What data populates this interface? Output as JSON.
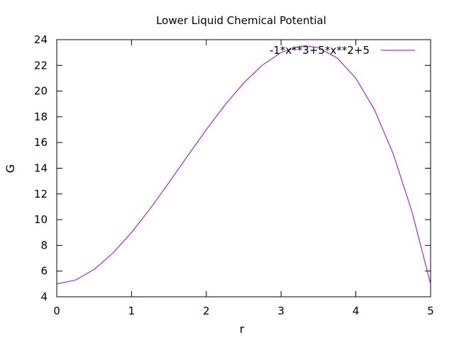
{
  "chart_data": {
    "type": "line",
    "title": "Lower Liquid Chemical Potential",
    "xlabel": "r",
    "ylabel": "G",
    "xlim": [
      0,
      5
    ],
    "ylim": [
      4,
      24
    ],
    "xticks": [
      0,
      1,
      2,
      3,
      4,
      5
    ],
    "yticks": [
      4,
      6,
      8,
      10,
      12,
      14,
      16,
      18,
      20,
      22,
      24
    ],
    "grid": false,
    "legend_position": "top-right",
    "series": [
      {
        "name": "-1*x**3+5*x**2+5",
        "color": "#9400d3",
        "x": [
          0,
          0.25,
          0.5,
          0.75,
          1.0,
          1.25,
          1.5,
          1.75,
          2.0,
          2.25,
          2.5,
          2.75,
          3.0,
          3.25,
          3.3333,
          3.5,
          3.75,
          4.0,
          4.25,
          4.5,
          4.75,
          5.0
        ],
        "y": [
          5,
          5.297,
          6.125,
          7.391,
          9.0,
          10.859,
          12.875,
          14.953,
          17.0,
          18.922,
          20.625,
          22.016,
          23.0,
          23.484,
          23.519,
          23.375,
          22.578,
          21.0,
          18.547,
          15.125,
          10.641,
          5.0
        ]
      }
    ]
  }
}
